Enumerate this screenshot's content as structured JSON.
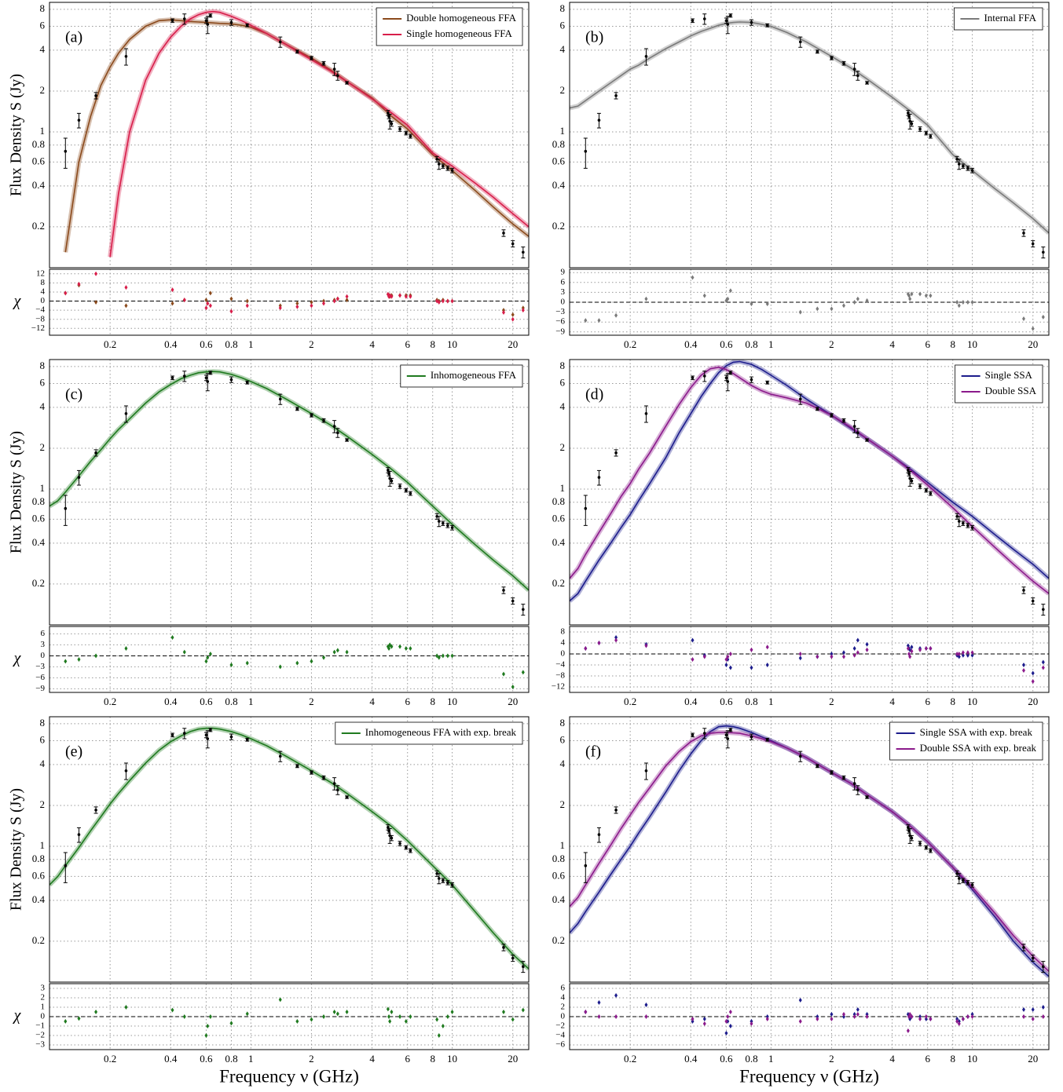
{
  "xlabel": "Frequency ν (GHz)",
  "ylabel": "Flux Density S (Jy)",
  "residual_ylabel": "χ",
  "x_log": true,
  "y_log": true,
  "grid": true,
  "xlim": [
    0.1,
    24
  ],
  "xticks": [
    0.2,
    0.4,
    0.6,
    0.8,
    1,
    2,
    4,
    6,
    8,
    10,
    20
  ],
  "ylim": [
    0.1,
    9
  ],
  "yticks": [
    0.2,
    0.4,
    0.6,
    0.8,
    1,
    2,
    4,
    6,
    8
  ],
  "observations": {
    "x": [
      0.12,
      0.14,
      0.17,
      0.24,
      0.408,
      0.468,
      0.6,
      0.61,
      0.63,
      0.8,
      0.96,
      1.4,
      1.7,
      2.0,
      2.3,
      2.6,
      2.7,
      3.0,
      4.8,
      4.85,
      4.9,
      5.0,
      5.5,
      5.9,
      6.2,
      8.4,
      8.6,
      9.0,
      9.5,
      10,
      18,
      20,
      22.5
    ],
    "values": [
      0.72,
      1.22,
      1.85,
      3.6,
      6.6,
      6.8,
      6.6,
      6.2,
      7.2,
      6.4,
      6.1,
      4.6,
      3.9,
      3.5,
      3.2,
      2.9,
      2.6,
      2.3,
      1.38,
      1.3,
      1.2,
      1.15,
      1.05,
      0.98,
      0.93,
      0.63,
      0.58,
      0.56,
      0.54,
      0.52,
      0.18,
      0.15,
      0.13
    ],
    "errors": [
      0.18,
      0.15,
      0.1,
      0.5,
      0.2,
      0.6,
      0.3,
      0.9,
      0.2,
      0.3,
      0.15,
      0.4,
      0.1,
      0.1,
      0.1,
      0.3,
      0.2,
      0.05,
      0.06,
      0.05,
      0.15,
      0.05,
      0.04,
      0.03,
      0.03,
      0.03,
      0.05,
      0.02,
      0.02,
      0.02,
      0.01,
      0.008,
      0.012
    ]
  },
  "model_x": [
    0.1,
    0.11,
    0.12,
    0.14,
    0.16,
    0.18,
    0.2,
    0.22,
    0.25,
    0.3,
    0.35,
    0.4,
    0.45,
    0.5,
    0.55,
    0.6,
    0.65,
    0.7,
    0.8,
    0.9,
    1,
    1.2,
    1.5,
    2,
    2.5,
    3,
    4,
    5,
    6,
    8,
    10,
    13,
    16,
    20,
    24
  ],
  "chart_data": [
    {
      "type": "line",
      "label": "(a)",
      "legend_loc": "upper right",
      "series": [
        {
          "name": "Double homogeneous FFA",
          "color": "#8b4a1c",
          "values": [
            null,
            null,
            0.13,
            0.6,
            1.3,
            2.2,
            3.0,
            3.8,
            4.8,
            6.0,
            6.6,
            6.7,
            6.6,
            6.5,
            6.45,
            6.4,
            6.35,
            6.3,
            6.25,
            6.1,
            5.9,
            5.3,
            4.4,
            3.5,
            2.85,
            2.35,
            1.78,
            1.3,
            1.05,
            0.68,
            0.52,
            0.37,
            0.28,
            0.21,
            0.17
          ]
        },
        {
          "name": "Single homogeneous FFA",
          "color": "#d81e4a",
          "values": [
            null,
            null,
            null,
            null,
            null,
            null,
            0.12,
            0.35,
            1.0,
            2.4,
            3.8,
            5.0,
            6.0,
            6.8,
            7.3,
            7.6,
            7.7,
            7.6,
            7.1,
            6.6,
            6.1,
            5.3,
            4.4,
            3.4,
            2.8,
            2.35,
            1.75,
            1.38,
            1.12,
            0.7,
            0.56,
            0.42,
            0.33,
            0.25,
            0.2
          ]
        }
      ],
      "residuals": {
        "ylim": [
          -15,
          14
        ],
        "yticks": [
          {
            "value": -12,
            "label": "−12"
          },
          {
            "value": -8,
            "label": "−8"
          },
          {
            "value": -4,
            "label": "−4"
          },
          0,
          4,
          8,
          12
        ],
        "values": [
          [
            3.5,
            7,
            -0.5,
            -2,
            -1,
            0.5,
            0.5,
            -1,
            3.5,
            1,
            0,
            -2,
            -1,
            -0.5,
            0,
            0.5,
            1,
            0.5,
            3,
            2.5,
            2,
            2.5,
            2.5,
            2.5,
            2.5,
            0.5,
            0,
            0.5,
            0,
            0,
            -4,
            -6,
            -3
          ],
          [
            3.5,
            7.5,
            12,
            6,
            5,
            0.5,
            -3,
            -1,
            -2,
            -4.5,
            -2,
            -3,
            -2.5,
            -2,
            -1,
            0,
            1,
            2,
            3,
            2,
            2.5,
            2,
            2.5,
            2,
            2,
            0,
            -0.5,
            0,
            0,
            0,
            -5,
            -8,
            -4
          ]
        ]
      }
    },
    {
      "type": "line",
      "label": "(b)",
      "legend_loc": "upper right",
      "series": [
        {
          "name": "Internal FFA",
          "color": "#7a7a7a",
          "values": [
            1.5,
            1.55,
            1.7,
            2.0,
            2.3,
            2.6,
            2.9,
            3.1,
            3.5,
            4.1,
            4.6,
            5.1,
            5.5,
            5.8,
            6.1,
            6.3,
            6.4,
            6.45,
            6.4,
            6.2,
            6.0,
            5.4,
            4.6,
            3.6,
            2.95,
            2.45,
            1.8,
            1.4,
            1.12,
            0.68,
            0.52,
            0.38,
            0.3,
            0.23,
            0.18
          ]
        }
      ],
      "residuals": {
        "ylim": [
          -10,
          10
        ],
        "yticks": [
          {
            "value": -9,
            "label": "−9"
          },
          {
            "value": -6,
            "label": "−6"
          },
          {
            "value": -3,
            "label": "−3"
          },
          0,
          3,
          6,
          9
        ],
        "values": [
          [
            -5.5,
            -5.5,
            -4,
            1,
            7.5,
            2,
            0.5,
            1,
            3.5,
            -0.5,
            -0.5,
            -3,
            -2,
            -2,
            -1,
            0,
            1,
            0.5,
            2.5,
            2,
            1,
            2.5,
            2.5,
            2,
            2,
            0,
            -1,
            0,
            0,
            0,
            -5,
            -8,
            -4.5
          ]
        ]
      }
    },
    {
      "type": "line",
      "label": "(c)",
      "legend_loc": "upper right",
      "series": [
        {
          "name": "Inhomogeneous FFA",
          "color": "#1f7a1f",
          "values": [
            0.75,
            0.82,
            0.95,
            1.25,
            1.6,
            1.95,
            2.35,
            2.75,
            3.3,
            4.3,
            5.2,
            5.9,
            6.5,
            6.9,
            7.2,
            7.3,
            7.35,
            7.3,
            7.0,
            6.6,
            6.2,
            5.5,
            4.6,
            3.6,
            2.95,
            2.45,
            1.8,
            1.4,
            1.12,
            0.75,
            0.55,
            0.39,
            0.3,
            0.23,
            0.18
          ]
        }
      ],
      "residuals": {
        "ylim": [
          -10,
          8
        ],
        "yticks": [
          {
            "value": -9,
            "label": "−9"
          },
          {
            "value": -6,
            "label": "−6"
          },
          {
            "value": -3,
            "label": "−3"
          },
          0,
          3,
          6
        ],
        "values": [
          [
            -1.5,
            -1,
            0,
            2,
            5,
            1,
            -1.5,
            -0.5,
            0.5,
            -2.5,
            -2,
            -3,
            -2,
            -1.5,
            -0.5,
            1,
            1.5,
            1,
            2.5,
            2,
            3,
            2.5,
            2.5,
            2,
            2,
            0,
            -0.5,
            0,
            0,
            0,
            -5,
            -8.5,
            -4.5
          ]
        ]
      }
    },
    {
      "type": "line",
      "label": "(d)",
      "legend_loc": "upper right",
      "series": [
        {
          "name": "Single SSA",
          "color": "#1c1c8c",
          "values": [
            0.15,
            0.17,
            0.21,
            0.3,
            0.4,
            0.52,
            0.65,
            0.82,
            1.1,
            1.7,
            2.6,
            3.6,
            4.8,
            6.0,
            7.2,
            8.1,
            8.6,
            8.7,
            8.3,
            7.6,
            6.9,
            5.8,
            4.6,
            3.5,
            2.8,
            2.35,
            1.75,
            1.38,
            1.12,
            0.8,
            0.63,
            0.46,
            0.36,
            0.28,
            0.22
          ]
        },
        {
          "name": "Double SSA",
          "color": "#8b1a8b",
          "values": [
            0.22,
            0.26,
            0.33,
            0.48,
            0.66,
            0.88,
            1.1,
            1.4,
            1.85,
            2.9,
            4.2,
            5.6,
            6.9,
            7.7,
            7.9,
            7.6,
            7.1,
            6.6,
            5.8,
            5.3,
            5.0,
            4.7,
            4.3,
            3.5,
            2.85,
            2.35,
            1.75,
            1.35,
            1.07,
            0.73,
            0.53,
            0.37,
            0.28,
            0.21,
            0.17
          ]
        }
      ],
      "residuals": {
        "ylim": [
          -14,
          10
        ],
        "yticks": [
          {
            "value": -12,
            "label": "−12"
          },
          {
            "value": -8,
            "label": "−8"
          },
          {
            "value": -4,
            "label": "−4"
          },
          0,
          4,
          8
        ],
        "values": [
          [
            2,
            4,
            6,
            3.5,
            5,
            -0.5,
            -4,
            -2,
            -5,
            -5,
            -4,
            -1.5,
            -1,
            0,
            0.5,
            2,
            5,
            3.5,
            3,
            2,
            1.5,
            2.5,
            2,
            2,
            2,
            -0.5,
            -1,
            -0.5,
            -0.5,
            -0.5,
            -4,
            -7,
            -3
          ],
          [
            2,
            4,
            5,
            3,
            -2,
            -1,
            -2,
            -1,
            0,
            1.5,
            2.5,
            0,
            -1,
            -1,
            -1,
            -0.5,
            0.5,
            1.5,
            2,
            0,
            -1,
            1,
            1.5,
            2,
            2,
            0,
            0,
            0.5,
            0.5,
            0.5,
            -6,
            -10,
            -5
          ]
        ]
      }
    },
    {
      "type": "line",
      "label": "(e)",
      "legend_loc": "upper right",
      "series": [
        {
          "name": "Inhomogeneous FFA with exp. break",
          "color": "#1f7a1f",
          "values": [
            0.52,
            0.6,
            0.72,
            0.98,
            1.3,
            1.65,
            2.05,
            2.45,
            3.05,
            4.1,
            5.1,
            5.9,
            6.5,
            7.0,
            7.3,
            7.4,
            7.4,
            7.3,
            7.0,
            6.6,
            6.2,
            5.5,
            4.6,
            3.6,
            2.95,
            2.45,
            1.8,
            1.4,
            1.1,
            0.72,
            0.52,
            0.33,
            0.23,
            0.16,
            0.125
          ]
        }
      ],
      "residuals": {
        "ylim": [
          -3.5,
          3.5
        ],
        "yticks": [
          {
            "value": -3,
            "label": "−3"
          },
          {
            "value": -2,
            "label": "−2"
          },
          {
            "value": -1,
            "label": "−1"
          },
          0,
          1,
          2,
          3
        ],
        "values": [
          [
            -0.5,
            -0.2,
            0.5,
            1,
            0.7,
            0,
            -2,
            -1,
            0,
            -0.7,
            0.3,
            1.8,
            -0.5,
            -0.3,
            0,
            0.5,
            0.3,
            0.5,
            0.8,
            0,
            -0.5,
            0.5,
            0,
            -0.5,
            0,
            -0.3,
            -2,
            -1,
            0,
            0.5,
            0.5,
            -0.3,
            0.7
          ]
        ]
      }
    },
    {
      "type": "line",
      "label": "(f)",
      "legend_loc": "upper right",
      "series": [
        {
          "name": "Single SSA with exp. break",
          "color": "#1c1c8c",
          "values": [
            0.23,
            0.27,
            0.33,
            0.46,
            0.62,
            0.8,
            1.0,
            1.25,
            1.65,
            2.5,
            3.6,
            4.8,
            6.0,
            7.0,
            7.6,
            7.7,
            7.6,
            7.4,
            6.9,
            6.4,
            6.0,
            5.3,
            4.5,
            3.5,
            2.9,
            2.4,
            1.8,
            1.38,
            1.08,
            0.7,
            0.48,
            0.3,
            0.2,
            0.14,
            0.11
          ]
        },
        {
          "name": "Double SSA with exp. break",
          "color": "#8b1a8b",
          "values": [
            0.36,
            0.42,
            0.52,
            0.75,
            1.02,
            1.35,
            1.7,
            2.1,
            2.7,
            3.9,
            5.0,
            5.9,
            6.5,
            6.8,
            6.9,
            6.9,
            6.85,
            6.8,
            6.5,
            6.2,
            5.9,
            5.3,
            4.5,
            3.5,
            2.9,
            2.4,
            1.8,
            1.38,
            1.08,
            0.7,
            0.5,
            0.32,
            0.22,
            0.155,
            0.12
          ]
        }
      ],
      "residuals": {
        "ylim": [
          -7,
          7
        ],
        "yticks": [
          {
            "value": -6,
            "label": "−6"
          },
          {
            "value": -4,
            "label": "−4"
          },
          {
            "value": -2,
            "label": "−2"
          },
          0,
          2,
          4,
          6
        ],
        "values": [
          [
            1,
            3,
            4.5,
            2.5,
            -1,
            -0.5,
            -3.5,
            -1,
            -2,
            -1,
            0,
            3.5,
            0,
            0.5,
            0,
            0.5,
            1.5,
            0.5,
            0.5,
            0,
            -0.5,
            0,
            0,
            -0.5,
            -0.5,
            -0.5,
            -1,
            -0.5,
            0,
            0.5,
            1.5,
            1.5,
            2
          ],
          [
            1,
            0,
            0,
            0,
            -0.5,
            -1.5,
            -1,
            0,
            1,
            -1.5,
            -0.5,
            -1,
            -0.5,
            -0.5,
            0.5,
            0,
            0.5,
            0,
            -3,
            0,
            0.5,
            0,
            -0.5,
            0,
            -0.5,
            -1,
            -1.5,
            -0.5,
            0,
            0,
            0,
            -0.5,
            0
          ]
        ]
      }
    }
  ]
}
